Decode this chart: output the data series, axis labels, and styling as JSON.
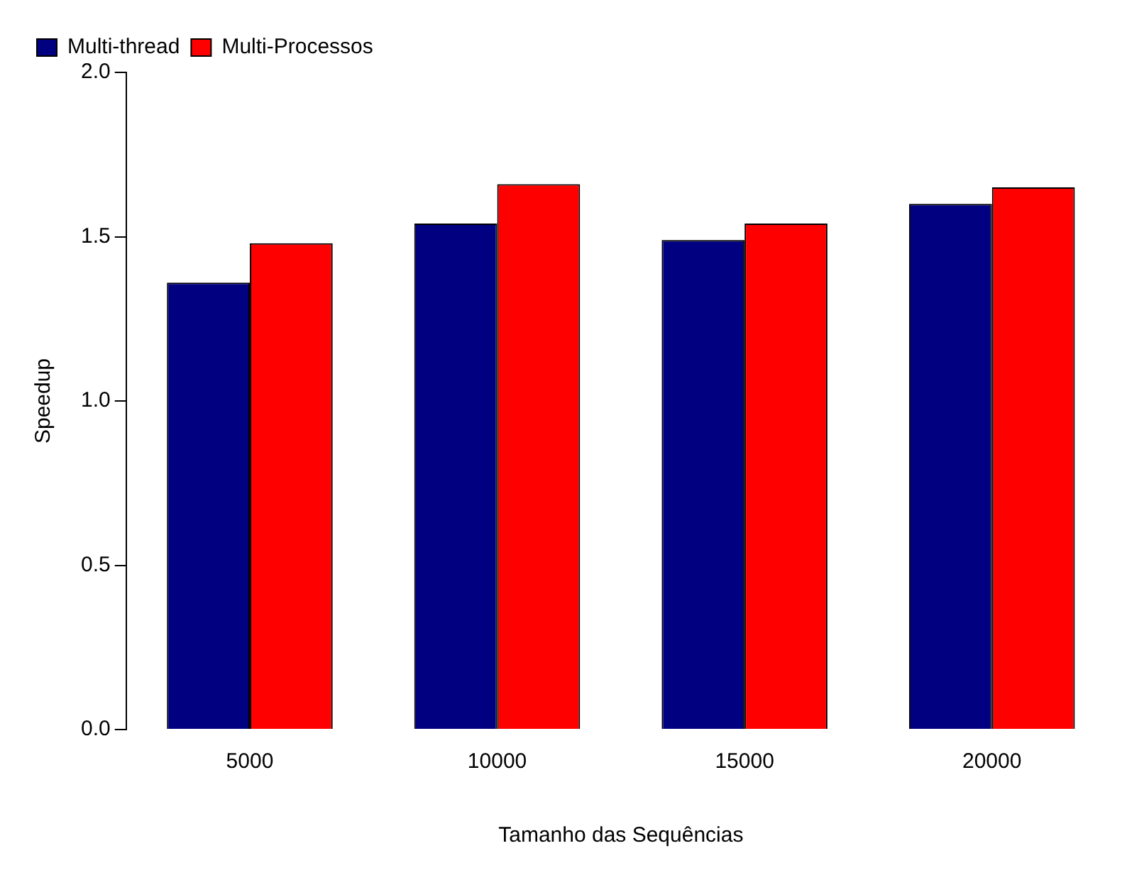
{
  "chart_data": {
    "type": "bar",
    "xlabel": "Tamanho das Sequências",
    "ylabel": "Speedup",
    "categories": [
      "5000",
      "10000",
      "15000",
      "20000"
    ],
    "series": [
      {
        "name": "Multi-thread",
        "color": "#000080",
        "values": [
          1.36,
          1.54,
          1.49,
          1.6
        ]
      },
      {
        "name": "Multi-Processos",
        "color": "#ff0000",
        "values": [
          1.48,
          1.66,
          1.54,
          1.65
        ]
      }
    ],
    "ylim": [
      0,
      2
    ],
    "yticks": [
      {
        "value": 0,
        "label": "0.0"
      },
      {
        "value": 0.5,
        "label": "0.5"
      },
      {
        "value": 1,
        "label": "1.0"
      },
      {
        "value": 1.5,
        "label": "1.5"
      },
      {
        "value": 2,
        "label": "2.0"
      }
    ],
    "grid": false,
    "legend": "top left"
  }
}
